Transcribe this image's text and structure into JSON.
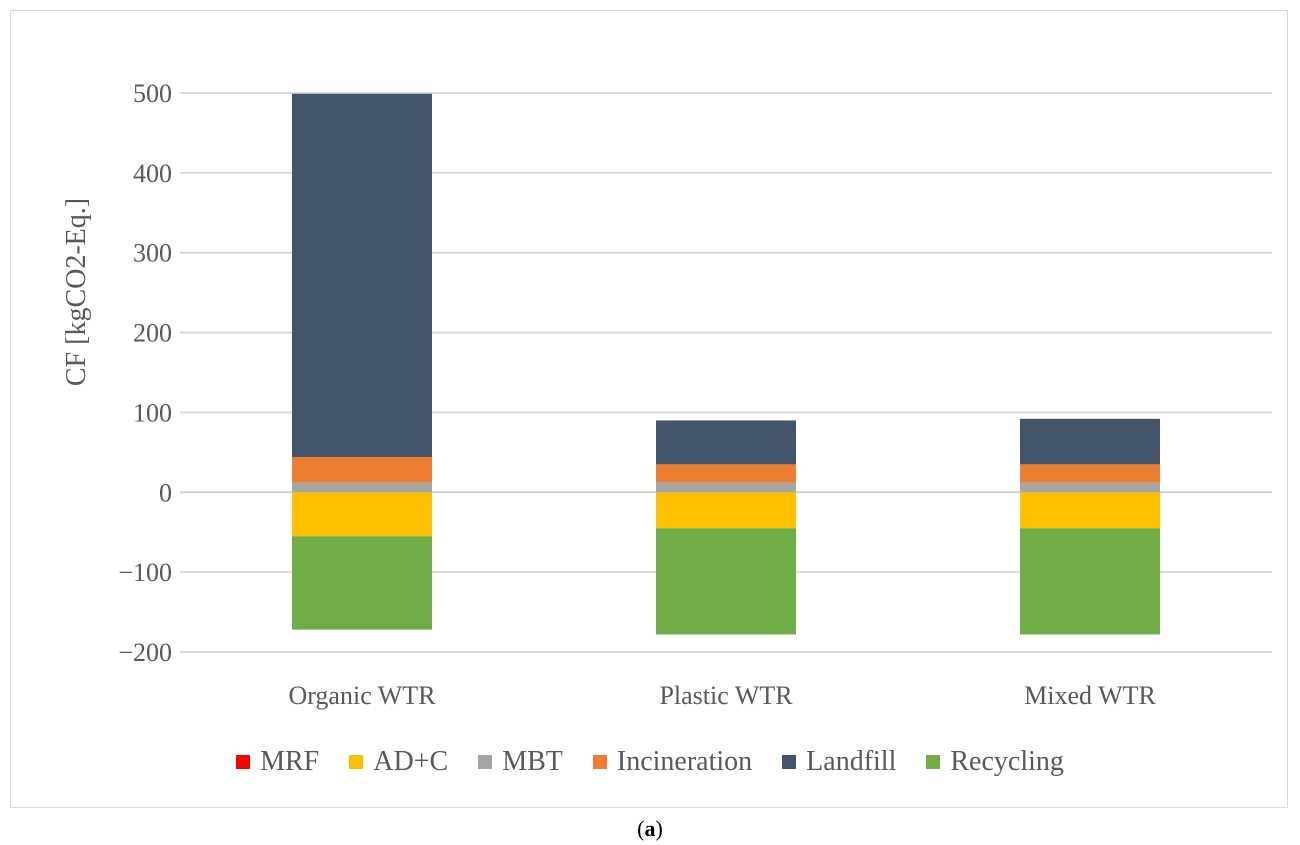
{
  "chart_data": {
    "type": "bar",
    "stacked": true,
    "title": "",
    "xlabel": "",
    "ylabel": "CF [kgCO2-Eq.]",
    "ylim": [
      -200,
      500
    ],
    "yticks": [
      -200,
      -100,
      0,
      100,
      200,
      300,
      400,
      500
    ],
    "ytick_labels": [
      "−200",
      "−100",
      "0",
      "100",
      "200",
      "300",
      "400",
      "500"
    ],
    "grid": true,
    "legend_position": "bottom",
    "categories": [
      "Organic WTR",
      "Plastic WTR",
      "Mixed WTR"
    ],
    "series": [
      {
        "name": "MRF",
        "color": "#ff0000",
        "values": [
          0,
          0,
          0
        ]
      },
      {
        "name": "AD+C",
        "color": "#ffc000",
        "values": [
          -55,
          -45,
          -45
        ]
      },
      {
        "name": "MBT",
        "color": "#a5a5a5",
        "values": [
          12,
          12,
          12
        ]
      },
      {
        "name": "Incineration",
        "color": "#ed7d31",
        "values": [
          32,
          23,
          23
        ]
      },
      {
        "name": "Landfill",
        "color": "#44546a",
        "values": [
          455,
          55,
          57
        ]
      },
      {
        "name": "Recycling",
        "color": "#70ad47",
        "values": [
          -117,
          -133,
          -133
        ]
      }
    ]
  },
  "caption": {
    "open": "(",
    "letter": "a",
    "close": ")"
  }
}
